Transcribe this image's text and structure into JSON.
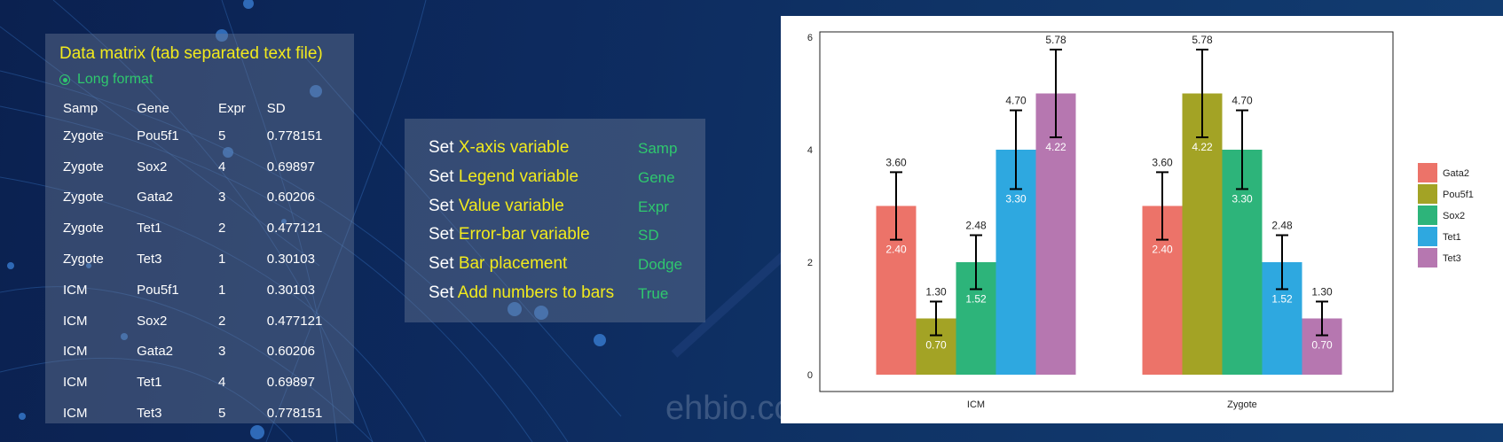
{
  "table": {
    "title": "Data matrix (tab separated text file)",
    "format_label": "Long format",
    "headers": [
      "Samp",
      "Gene",
      "Expr",
      "SD"
    ],
    "rows": [
      [
        "Zygote",
        "Pou5f1",
        "5",
        "0.778151"
      ],
      [
        "Zygote",
        "Sox2",
        "4",
        "0.69897"
      ],
      [
        "Zygote",
        "Gata2",
        "3",
        "0.60206"
      ],
      [
        "Zygote",
        "Tet1",
        "2",
        "0.477121"
      ],
      [
        "Zygote",
        "Tet3",
        "1",
        "0.30103"
      ],
      [
        "ICM",
        "Pou5f1",
        "1",
        "0.30103"
      ],
      [
        "ICM",
        "Sox2",
        "2",
        "0.477121"
      ],
      [
        "ICM",
        "Gata2",
        "3",
        "0.60206"
      ],
      [
        "ICM",
        "Tet1",
        "4",
        "0.69897"
      ],
      [
        "ICM",
        "Tet3",
        "5",
        "0.778151"
      ]
    ]
  },
  "settings": {
    "keyword": "Set",
    "items": [
      {
        "label": "X-axis variable",
        "value": "Samp"
      },
      {
        "label": "Legend variable",
        "value": "Gene"
      },
      {
        "label": "Value variable",
        "value": "Expr"
      },
      {
        "label": "Error-bar variable",
        "value": "SD"
      },
      {
        "label": "Bar placement",
        "value": "Dodge"
      },
      {
        "label": "Add numbers to bars",
        "value": "True"
      }
    ]
  },
  "watermark": "ehbio.com",
  "colors": {
    "title_yellow": "#f2ea1d",
    "value_green": "#2fc86e",
    "chart_bg": "#ffffff"
  },
  "chart_data": {
    "type": "bar",
    "categories": [
      "ICM",
      "Zygote"
    ],
    "series": [
      {
        "name": "Gata2",
        "color": "#ec7369",
        "values": [
          3,
          3
        ],
        "errors": [
          0.6,
          0.6
        ],
        "upper_labels": [
          "3.60",
          "3.60"
        ],
        "lower_labels": [
          "2.40",
          "2.40"
        ]
      },
      {
        "name": "Pou5f1",
        "color": "#a3a325",
        "values": [
          1,
          5
        ],
        "errors": [
          0.3,
          0.78
        ],
        "upper_labels": [
          "1.30",
          "5.78"
        ],
        "lower_labels": [
          "0.70",
          "4.22"
        ]
      },
      {
        "name": "Sox2",
        "color": "#2db47a",
        "values": [
          2,
          4
        ],
        "errors": [
          0.48,
          0.7
        ],
        "upper_labels": [
          "2.48",
          "4.70"
        ],
        "lower_labels": [
          "1.52",
          "3.30"
        ]
      },
      {
        "name": "Tet1",
        "color": "#2ea8e0",
        "values": [
          4,
          2
        ],
        "errors": [
          0.7,
          0.48
        ],
        "upper_labels": [
          "4.70",
          "2.48"
        ],
        "lower_labels": [
          "3.30",
          "1.52"
        ]
      },
      {
        "name": "Tet3",
        "color": "#b677b0",
        "values": [
          5,
          1
        ],
        "errors": [
          0.78,
          0.3
        ],
        "upper_labels": [
          "5.78",
          "1.30"
        ],
        "lower_labels": [
          "4.22",
          "0.70"
        ]
      }
    ],
    "y_ticks": [
      "0",
      "2",
      "4",
      "6"
    ],
    "ylim": [
      0,
      6
    ],
    "xlabel": "",
    "ylabel": "",
    "legend_position": "right",
    "grid": false
  }
}
